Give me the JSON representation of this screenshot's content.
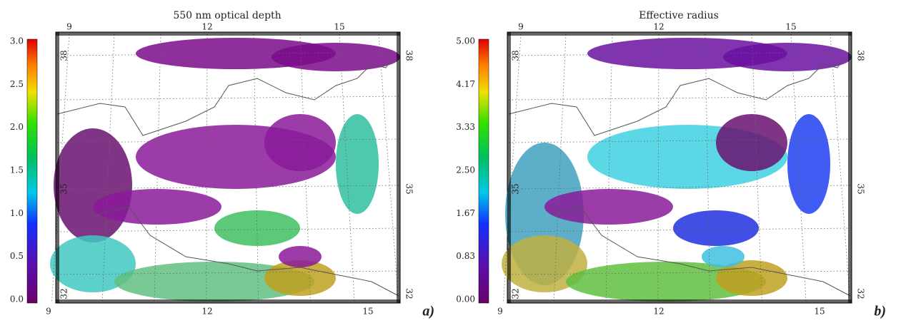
{
  "panels": [
    {
      "title": "550 nm optical depth",
      "colorbar_ticks": [
        "0.0",
        "0.5",
        "1.0",
        "1.5",
        "2.0",
        "2.5",
        "3.0"
      ],
      "lon_ticks": [
        "9",
        "12",
        "15"
      ],
      "lat_ticks": [
        "32",
        "35",
        "38"
      ],
      "label": "a)"
    },
    {
      "title": "Effective radius",
      "colorbar_ticks": [
        "0.00",
        "0.83",
        "1.67",
        "2.50",
        "3.33",
        "4.17",
        "5.00"
      ],
      "lon_ticks": [
        "9",
        "12",
        "15"
      ],
      "lat_ticks": [
        "32",
        "35",
        "38"
      ],
      "label": "b)"
    }
  ]
}
